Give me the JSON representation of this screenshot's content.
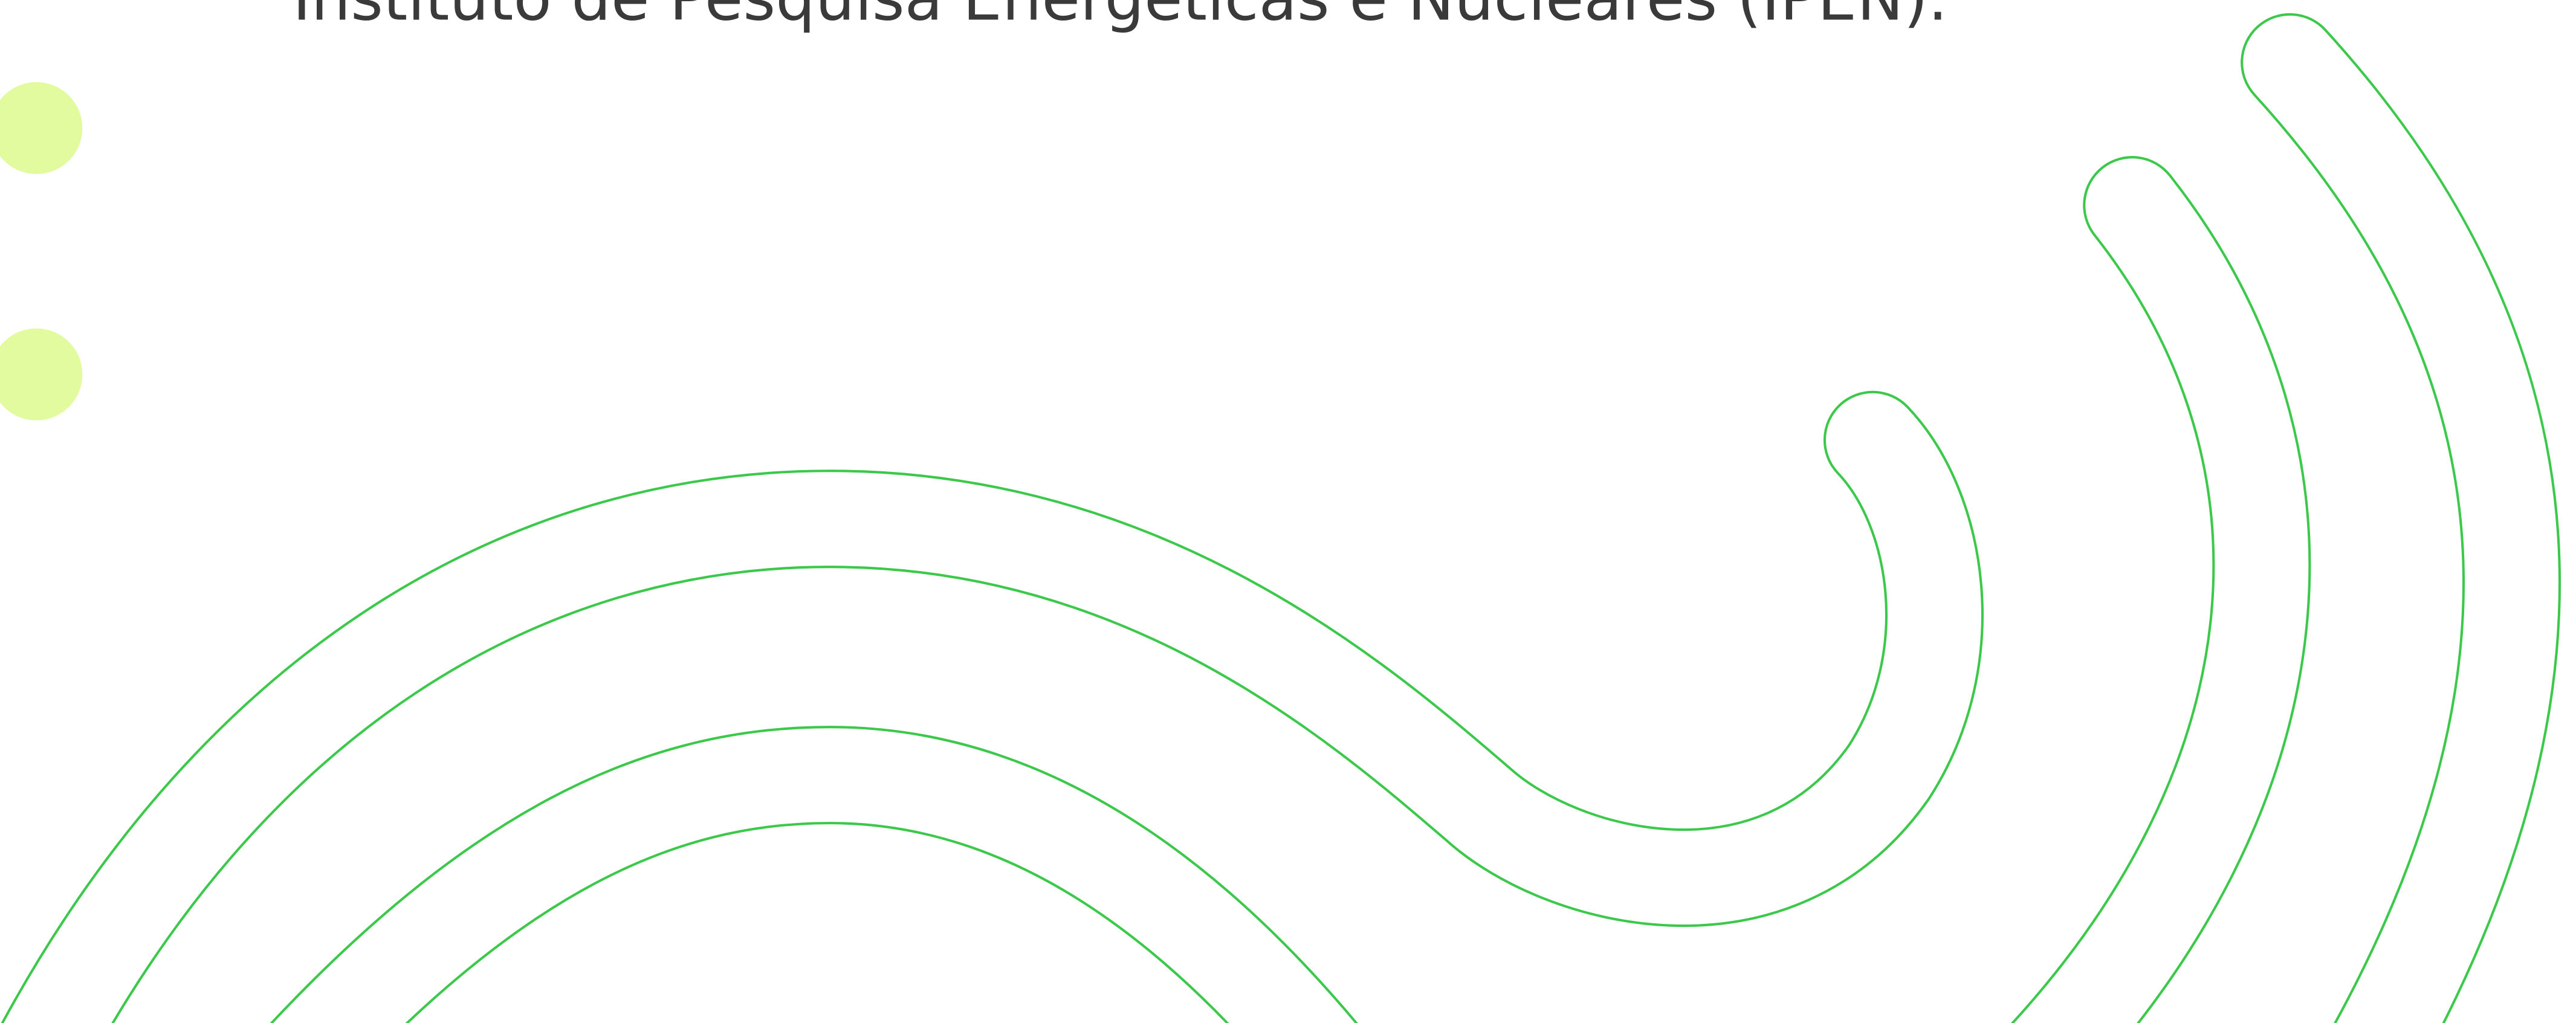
{
  "caption": "Instituto de Pesquisa Energéticas e Nucleares (IPEN)."
}
